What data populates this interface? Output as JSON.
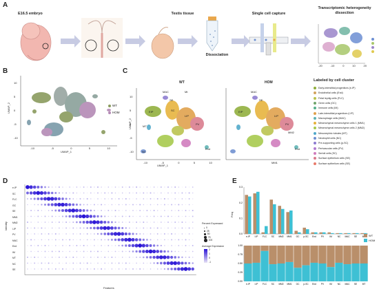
{
  "panels": {
    "a": "A",
    "b": "B",
    "c": "C",
    "d": "D",
    "e": "E"
  },
  "panel_a": {
    "steps": [
      "E16.5 embryo",
      "Testis tissue",
      "Dissociation",
      "Single cell capture",
      "Transcriptomic heterogeneity dissection"
    ],
    "umap_ticks_x": [
      "-20",
      "-10",
      "0",
      "10",
      "20"
    ],
    "umap_ticks_y": [
      "20",
      "10",
      "0",
      "-10",
      "-20"
    ]
  },
  "panel_b": {
    "xlabel": "UMAP_1",
    "ylabel": "UMAP_2",
    "xticks": [
      "-10",
      "-5",
      "0",
      "5",
      "10"
    ],
    "yticks": [
      "10",
      "5",
      "0",
      "-5",
      "-10"
    ],
    "legend": [
      {
        "label": "WT",
        "color": "#8a9b5e"
      },
      {
        "label": "HOM",
        "color": "#b48ab5"
      }
    ]
  },
  "panel_c": {
    "titles": [
      "WT",
      "HOM"
    ],
    "xlabel": "UMAP_1",
    "ylabel": "UMAP_2",
    "xticks": [
      "-10",
      "-5",
      "0",
      "5",
      "10"
    ],
    "yticks": [
      "10",
      "5",
      "0",
      "-5",
      "-10"
    ],
    "cluster_labels_left": [
      "MAC",
      "Mt",
      "SE",
      "LIP",
      "SC",
      "PV",
      "EIP",
      "MT",
      "NC",
      "End"
    ],
    "cluster_labels_right": [
      "MAC",
      "SE",
      "LIP",
      "PV",
      "EIP",
      "MM1",
      "End",
      "MM2"
    ],
    "legend_title": "Labeled by cell cluster",
    "legend": [
      {
        "label": "Early-interstitial progenitors (e-IP)",
        "color": "#8fae3a"
      },
      {
        "label": "Endothelial cells (End)",
        "color": "#d2a25c"
      },
      {
        "label": "Fetal leydig cells (FLC)",
        "color": "#b9c24c"
      },
      {
        "label": "Germ cells (GC)",
        "color": "#6fa56b"
      },
      {
        "label": "Immune cells (IM)",
        "color": "#55b08a"
      },
      {
        "label": "Late-interstitial progenitors (l-IP)",
        "color": "#e0a04a"
      },
      {
        "label": "Macrophage cells (MAC)",
        "color": "#5db3b3"
      },
      {
        "label": "Mesenchymal mesenchyme cells 1 (MM1)",
        "color": "#e6b23a"
      },
      {
        "label": "Mesenchymal mesenchyme cells 2 (MM2)",
        "color": "#a6c94a"
      },
      {
        "label": "Mesonephric tubules (MT)",
        "color": "#4ea8c9"
      },
      {
        "label": "Neutrophil cells (NC)",
        "color": "#6e8fd0"
      },
      {
        "label": "Pre-supporting cells (p-SC)",
        "color": "#8c7bd0"
      },
      {
        "label": "Perivascular cells (PV)",
        "color": "#b07bd0"
      },
      {
        "label": "Sertoli cells (SC)",
        "color": "#d07bbd"
      },
      {
        "label": "Surface epithelium cells (SE)",
        "color": "#d97a8c"
      },
      {
        "label": "Surface epithelium cells (SE)",
        "color": "#e87a6a"
      }
    ]
  },
  "panel_d": {
    "ylabel": "Identity",
    "xlabel": "Features",
    "rows": [
      "e-IP",
      "SC",
      "FLC",
      "GC",
      "SE",
      "MM1",
      "MM2",
      "l-IP",
      "PV",
      "MAC",
      "End",
      "IM",
      "MT",
      "NC",
      "SE"
    ],
    "size_legend_title": "Percent Expressed",
    "size_legend": [
      "0",
      "25",
      "50",
      "75",
      "100"
    ],
    "color_legend_title": "Average Expression",
    "color_legend_ticks": [
      "2",
      "1",
      "0",
      "-1"
    ],
    "color_low": "#e8e3f5",
    "color_high": "#2a14d6"
  },
  "panel_e": {
    "top_ylabel": "Freq",
    "top_yticks": [
      "0.3",
      "0.2",
      "0.1",
      "0.0"
    ],
    "categories": [
      "e-IP",
      "l-IP",
      "FLC",
      "SC",
      "MM2",
      "MM1",
      "GC",
      "p-SC",
      "End",
      "PV",
      "IM",
      "NC",
      "MAC",
      "SE",
      "MT"
    ],
    "legend": [
      {
        "label": "WT",
        "color": "#b98f6a"
      },
      {
        "label": "HOM",
        "color": "#3ec0d4"
      }
    ],
    "bottom_yticks": [
      "1.00",
      "0.75",
      "0.50",
      "0.25",
      "0.00"
    ]
  },
  "chart_data": {
    "type": "bar",
    "categories": [
      "e-IP",
      "l-IP",
      "FLC",
      "SC",
      "MM2",
      "MM1",
      "GC",
      "p-SC",
      "End",
      "PV",
      "IM",
      "NC",
      "MAC",
      "SE",
      "MT"
    ],
    "series": [
      {
        "name": "WT",
        "values": [
          0.25,
          0.26,
          0.01,
          0.22,
          0.18,
          0.14,
          0.02,
          0.04,
          0.01,
          0.01,
          0.01,
          0.005,
          0.005,
          0.005,
          0.005
        ]
      },
      {
        "name": "HOM",
        "values": [
          0.24,
          0.27,
          0.05,
          0.19,
          0.16,
          0.15,
          0.01,
          0.03,
          0.01,
          0.01,
          0.005,
          0.005,
          0.005,
          0.005,
          0.005
        ]
      }
    ],
    "proportion_WT": [
      0.5,
      0.48,
      0.15,
      0.52,
      0.5,
      0.46,
      0.62,
      0.55,
      0.48,
      0.5,
      0.6,
      0.48,
      0.52,
      0.5,
      0.5
    ],
    "ylabel": "Freq",
    "ylim": [
      0,
      0.3
    ]
  }
}
